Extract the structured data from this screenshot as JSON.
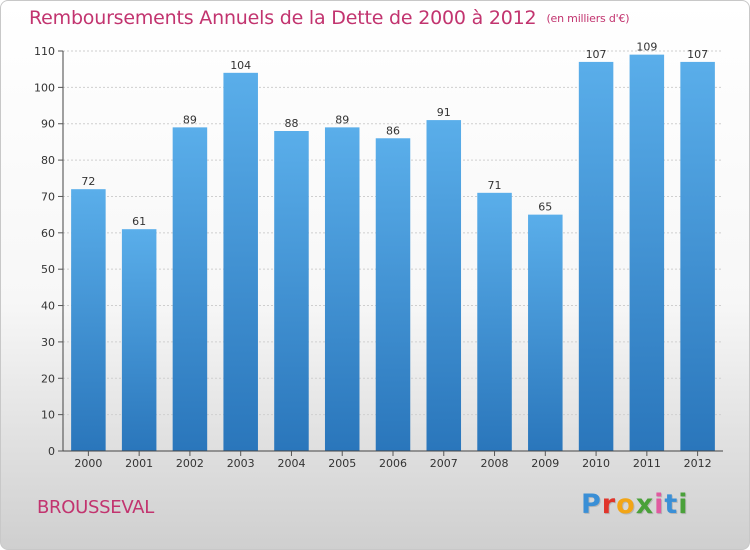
{
  "header": {
    "title": "Remboursements Annuels de la Dette de 2000 à 2012",
    "unit": "(en milliers d'€)"
  },
  "footer": {
    "commune": "BROUSSEVAL",
    "logo_text": "Proxiti",
    "logo_colors": [
      "#3a8fd6",
      "#e0352b",
      "#f2a516",
      "#4aa13a",
      "#e05aa0",
      "#3a8fd6",
      "#4aa13a"
    ]
  },
  "chart_data": {
    "type": "bar",
    "categories": [
      "2000",
      "2001",
      "2002",
      "2003",
      "2004",
      "2005",
      "2006",
      "2007",
      "2008",
      "2009",
      "2010",
      "2011",
      "2012"
    ],
    "values": [
      72,
      61,
      89,
      104,
      88,
      89,
      86,
      91,
      71,
      65,
      107,
      109,
      107
    ],
    "title": "Remboursements Annuels de la Dette de 2000 à 2012",
    "ylim": [
      0,
      110
    ],
    "yticks": [
      0,
      10,
      20,
      30,
      40,
      50,
      60,
      70,
      80,
      90,
      100,
      110
    ],
    "grid": true,
    "bar_color": "#3d8fd9",
    "value_labels": true,
    "legend": "none"
  }
}
